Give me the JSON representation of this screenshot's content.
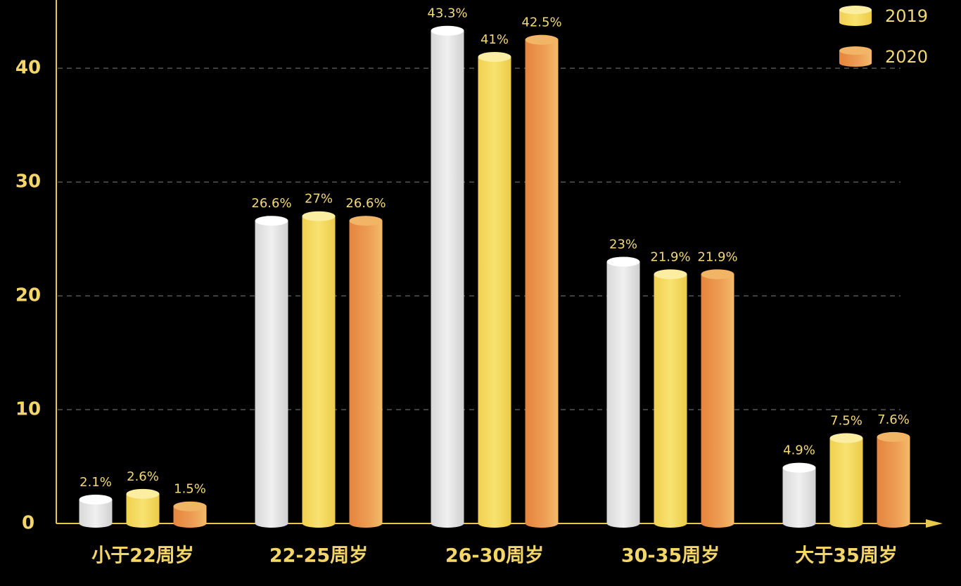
{
  "chart_data": {
    "type": "bar",
    "categories": [
      "小于22周岁",
      "22-25周岁",
      "26-30周岁",
      "30-35周岁",
      "大于35周岁"
    ],
    "series": [
      {
        "color": "#e4e4e4",
        "values": [
          2.1,
          26.6,
          43.3,
          23,
          4.9
        ],
        "value_labels": [
          "2.1%",
          "26.6%",
          "43.3%",
          "23%",
          "4.9%"
        ]
      },
      {
        "name": "2019",
        "color": "#f5dc62",
        "values": [
          2.6,
          27,
          41,
          21.9,
          7.5
        ],
        "value_labels": [
          "2.6%",
          "27%",
          "41%",
          "21.9%",
          "7.5%"
        ]
      },
      {
        "name": "2020",
        "color": "#e8904a",
        "values": [
          1.5,
          26.6,
          42.5,
          21.9,
          7.6
        ],
        "value_labels": [
          "1.5%",
          "26.6%",
          "42.5%",
          "21.9%",
          "7.6%"
        ]
      }
    ],
    "ylim": [
      0,
      46
    ],
    "yticks": [
      0,
      10,
      20,
      30,
      40
    ],
    "grid": true
  }
}
